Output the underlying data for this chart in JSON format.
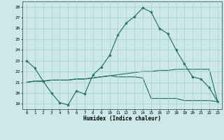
{
  "xlabel": "Humidex (Indice chaleur)",
  "bg_color": "#cce8e8",
  "grid_color": "#aacccc",
  "line_color": "#1a6b5a",
  "xlim": [
    -0.5,
    23.5
  ],
  "ylim": [
    18.5,
    28.5
  ],
  "xticks": [
    0,
    1,
    2,
    3,
    4,
    5,
    6,
    7,
    8,
    9,
    10,
    11,
    12,
    13,
    14,
    15,
    16,
    17,
    18,
    19,
    20,
    21,
    22,
    23
  ],
  "yticks": [
    19,
    20,
    21,
    22,
    23,
    24,
    25,
    26,
    27,
    28
  ],
  "line1_x": [
    0,
    1,
    2,
    3,
    4,
    5,
    6,
    7,
    8,
    9,
    10,
    11,
    12,
    13,
    14,
    15,
    16,
    17,
    18,
    19,
    20,
    21,
    22,
    23
  ],
  "line1_y": [
    23.0,
    22.3,
    21.1,
    20.0,
    19.1,
    18.9,
    20.2,
    19.9,
    21.7,
    22.4,
    23.5,
    25.4,
    26.5,
    27.1,
    27.9,
    27.5,
    26.0,
    25.5,
    24.0,
    22.7,
    21.5,
    21.3,
    20.5,
    19.2
  ],
  "line2_x": [
    0,
    1,
    2,
    3,
    4,
    5,
    6,
    7,
    8,
    9,
    10,
    11,
    12,
    13,
    14,
    15,
    16,
    17,
    18,
    19,
    20,
    21,
    22,
    23
  ],
  "line2_y": [
    21.0,
    21.1,
    21.1,
    21.2,
    21.2,
    21.2,
    21.3,
    21.3,
    21.4,
    21.5,
    21.6,
    21.7,
    21.8,
    21.9,
    22.0,
    22.0,
    22.1,
    22.1,
    22.2,
    22.2,
    22.2,
    22.2,
    22.2,
    19.2
  ],
  "line3_x": [
    0,
    1,
    2,
    3,
    4,
    5,
    6,
    7,
    8,
    9,
    10,
    11,
    12,
    13,
    14,
    15,
    16,
    17,
    18,
    19,
    20,
    21,
    22,
    23
  ],
  "line3_y": [
    21.0,
    21.1,
    21.1,
    21.2,
    21.2,
    21.2,
    21.3,
    21.3,
    21.4,
    21.5,
    21.6,
    21.5,
    21.5,
    21.5,
    21.4,
    19.5,
    19.5,
    19.5,
    19.5,
    19.3,
    19.3,
    19.3,
    19.3,
    19.2
  ]
}
